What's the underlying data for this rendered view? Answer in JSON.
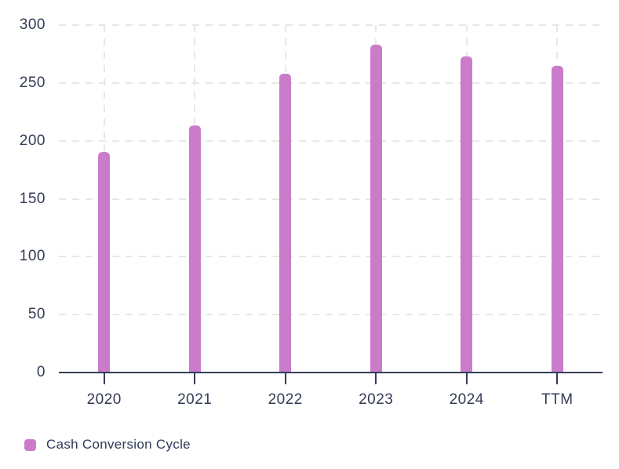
{
  "chart_data": {
    "type": "bar",
    "categories": [
      "2020",
      "2021",
      "2022",
      "2023",
      "2024",
      "TTM"
    ],
    "series": [
      {
        "name": "Cash Conversion Cycle",
        "values": [
          190,
          213,
          258,
          283,
          273,
          265
        ],
        "color": "#ca7ccb"
      }
    ],
    "title": "",
    "xlabel": "",
    "ylabel": "",
    "ylim": [
      0,
      300
    ],
    "yticks": [
      0,
      50,
      100,
      150,
      200,
      250,
      300
    ],
    "grid": "dashed horizontal gridlines at y-ticks and dashed vertical gridlines at each category",
    "legend_position": "bottom-left"
  },
  "colors": {
    "bar": "#ca7ccb",
    "gridline": "#e7e7e7",
    "axis": "#363d58",
    "tick_label": "#333b56",
    "legend_text": "#2e3a59",
    "background": "#ffffff"
  }
}
